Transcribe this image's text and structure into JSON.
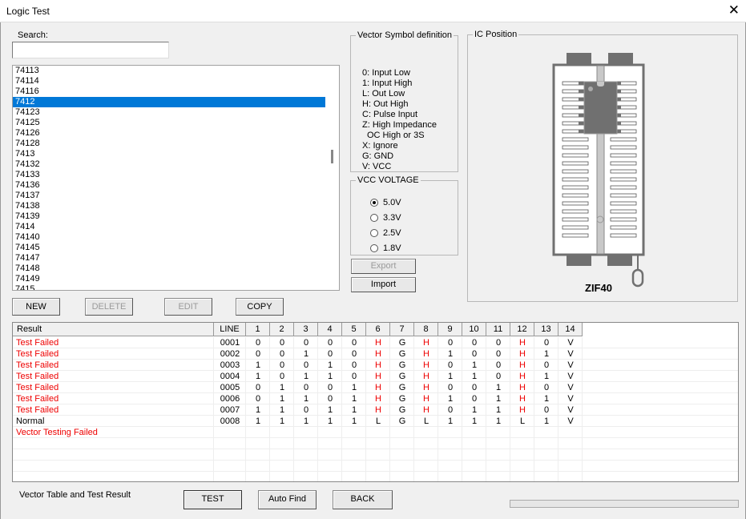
{
  "window": {
    "title": "Logic Test",
    "close_icon": "close-icon"
  },
  "search": {
    "label": "Search:",
    "value": "",
    "placeholder": ""
  },
  "ic_list": {
    "items": [
      "74113",
      "74114",
      "74116",
      "7412",
      "74123",
      "74125",
      "74126",
      "74128",
      "7413",
      "74132",
      "74133",
      "74136",
      "74137",
      "74138",
      "74139",
      "7414",
      "74140",
      "74145",
      "74147",
      "74148",
      "74149",
      "7415"
    ],
    "selected": "7412"
  },
  "list_buttons": {
    "new": "NEW",
    "delete": "DELETE",
    "edit": "EDIT",
    "copy": "COPY"
  },
  "vector_symbols": {
    "title": "Vector Symbol definition",
    "lines": [
      "0: Input Low",
      "1: Input High",
      "L: Out Low",
      "H: Out High",
      "C: Pulse Input",
      "Z: High Impedance",
      "OC High or 3S",
      "X: Ignore",
      "G: GND",
      "V: VCC"
    ]
  },
  "vcc": {
    "title": "VCC VOLTAGE",
    "options": [
      "5.0V",
      "3.3V",
      "2.5V",
      "1.8V"
    ],
    "selected": "5.0V"
  },
  "io_buttons": {
    "export": "Export",
    "import": "Import"
  },
  "ic_position": {
    "title": "IC Position",
    "socket_label": "ZIF40",
    "socket_pins": 40,
    "chip_pins": 14
  },
  "table": {
    "columns": [
      "Result",
      "LINE",
      "1",
      "2",
      "3",
      "4",
      "5",
      "6",
      "7",
      "8",
      "9",
      "10",
      "11",
      "12",
      "13",
      "14"
    ],
    "rows": [
      {
        "result": "Test Failed",
        "status": "fail",
        "line": "0001",
        "pins": [
          "0",
          "0",
          "0",
          "0",
          "0",
          "H",
          "G",
          "H",
          "0",
          "0",
          "0",
          "H",
          "0",
          "V"
        ]
      },
      {
        "result": "Test Failed",
        "status": "fail",
        "line": "0002",
        "pins": [
          "0",
          "0",
          "1",
          "0",
          "0",
          "H",
          "G",
          "H",
          "1",
          "0",
          "0",
          "H",
          "1",
          "V"
        ]
      },
      {
        "result": "Test Failed",
        "status": "fail",
        "line": "0003",
        "pins": [
          "1",
          "0",
          "0",
          "1",
          "0",
          "H",
          "G",
          "H",
          "0",
          "1",
          "0",
          "H",
          "0",
          "V"
        ]
      },
      {
        "result": "Test Failed",
        "status": "fail",
        "line": "0004",
        "pins": [
          "1",
          "0",
          "1",
          "1",
          "0",
          "H",
          "G",
          "H",
          "1",
          "1",
          "0",
          "H",
          "1",
          "V"
        ]
      },
      {
        "result": "Test Failed",
        "status": "fail",
        "line": "0005",
        "pins": [
          "0",
          "1",
          "0",
          "0",
          "1",
          "H",
          "G",
          "H",
          "0",
          "0",
          "1",
          "H",
          "0",
          "V"
        ]
      },
      {
        "result": "Test Failed",
        "status": "fail",
        "line": "0006",
        "pins": [
          "0",
          "1",
          "1",
          "0",
          "1",
          "H",
          "G",
          "H",
          "1",
          "0",
          "1",
          "H",
          "1",
          "V"
        ]
      },
      {
        "result": "Test Failed",
        "status": "fail",
        "line": "0007",
        "pins": [
          "1",
          "1",
          "0",
          "1",
          "1",
          "H",
          "G",
          "H",
          "0",
          "1",
          "1",
          "H",
          "0",
          "V"
        ]
      },
      {
        "result": "Normal",
        "status": "ok",
        "line": "0008",
        "pins": [
          "1",
          "1",
          "1",
          "1",
          "1",
          "L",
          "G",
          "L",
          "1",
          "1",
          "1",
          "L",
          "1",
          "V"
        ]
      },
      {
        "result": "Vector Testing Failed",
        "status": "fail",
        "line": "",
        "pins": []
      }
    ],
    "failed_pin_columns": [
      6,
      8,
      12
    ]
  },
  "footer": {
    "caption": "Vector Table and Test Result",
    "test": "TEST",
    "auto_find": "Auto Find",
    "back": "BACK",
    "progress": 0
  },
  "colors": {
    "selection": "#0078d7",
    "fail_text": "#e00000",
    "socket": "#707070"
  }
}
